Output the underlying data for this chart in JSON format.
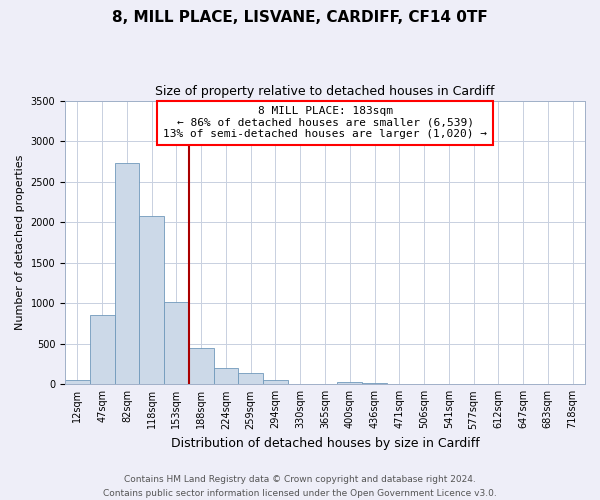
{
  "title": "8, MILL PLACE, LISVANE, CARDIFF, CF14 0TF",
  "subtitle": "Size of property relative to detached houses in Cardiff",
  "xlabel": "Distribution of detached houses by size in Cardiff",
  "ylabel": "Number of detached properties",
  "bar_labels": [
    "12sqm",
    "47sqm",
    "82sqm",
    "118sqm",
    "153sqm",
    "188sqm",
    "224sqm",
    "259sqm",
    "294sqm",
    "330sqm",
    "365sqm",
    "400sqm",
    "436sqm",
    "471sqm",
    "506sqm",
    "541sqm",
    "577sqm",
    "612sqm",
    "647sqm",
    "683sqm",
    "718sqm"
  ],
  "bar_values": [
    50,
    850,
    2730,
    2070,
    1010,
    450,
    205,
    140,
    55,
    0,
    0,
    30,
    20,
    0,
    0,
    0,
    0,
    0,
    0,
    0,
    0
  ],
  "bar_color": "#ccd9e8",
  "bar_edge_color": "#7099bb",
  "vline_x_index": 5,
  "vline_color": "#aa0000",
  "ylim": [
    0,
    3500
  ],
  "yticks": [
    0,
    500,
    1000,
    1500,
    2000,
    2500,
    3000,
    3500
  ],
  "annotation_title": "8 MILL PLACE: 183sqm",
  "annotation_line1": "← 86% of detached houses are smaller (6,539)",
  "annotation_line2": "13% of semi-detached houses are larger (1,020) →",
  "footer_line1": "Contains HM Land Registry data © Crown copyright and database right 2024.",
  "footer_line2": "Contains public sector information licensed under the Open Government Licence v3.0.",
  "bg_color": "#eeeef8",
  "plot_bg_color": "#ffffff",
  "grid_color": "#c8d0e0",
  "title_fontsize": 11,
  "subtitle_fontsize": 9,
  "ylabel_fontsize": 8,
  "xlabel_fontsize": 9,
  "tick_fontsize": 7,
  "ann_fontsize": 8,
  "footer_fontsize": 6.5
}
